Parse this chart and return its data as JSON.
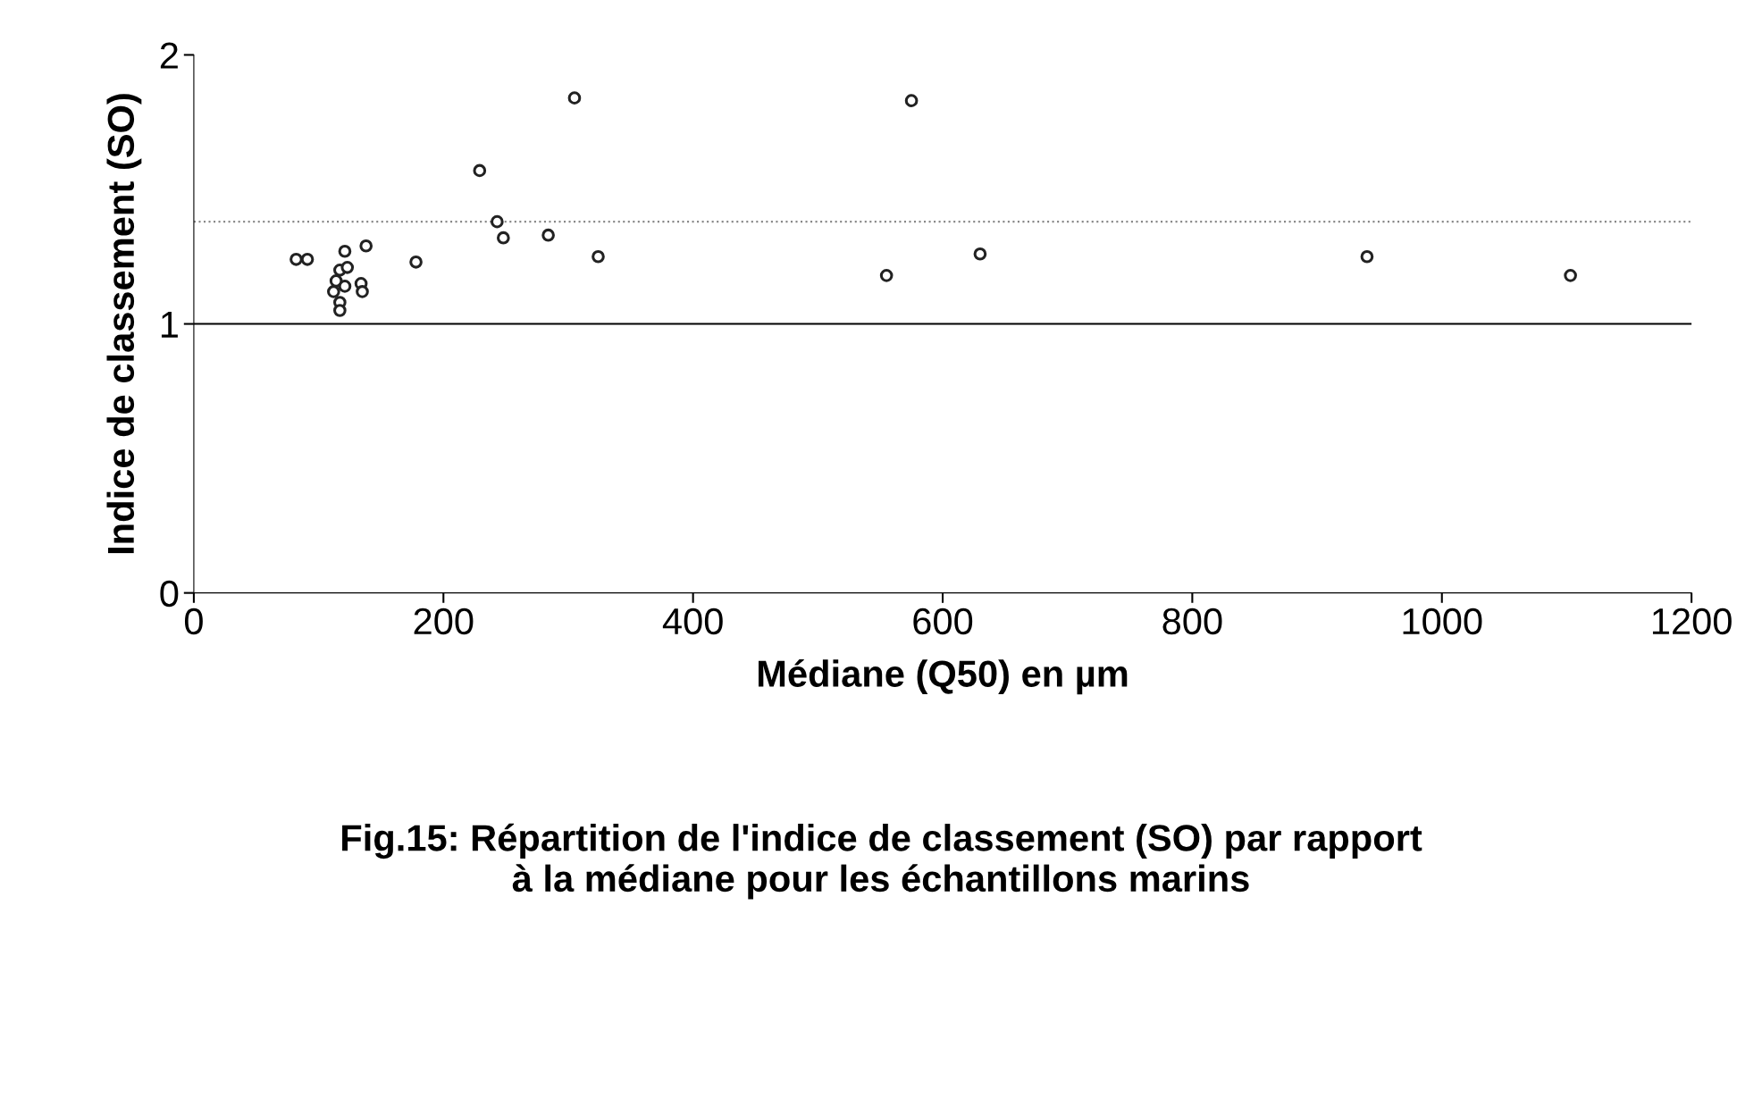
{
  "chart_data": {
    "type": "scatter",
    "xlabel": "Médiane (Q50) en µm",
    "ylabel": "Indice de classement (SO)",
    "annotations": [
      "Fig.15: Répartition de l'indice de classement (SO) par rapport\nà la médiane pour les échantillons marins"
    ],
    "x": [
      82,
      91,
      121,
      138,
      178,
      229,
      243,
      248,
      284,
      305,
      324,
      555,
      630,
      940,
      1103,
      575,
      117,
      114,
      121,
      134,
      135,
      112,
      117,
      117,
      123
    ],
    "series": [
      {
        "color": "#222222",
        "values": [
          1.24,
          1.24,
          1.27,
          1.29,
          1.23,
          1.57,
          1.38,
          1.32,
          1.33,
          1.84,
          1.25,
          1.18,
          1.26,
          1.25,
          1.18,
          1.83,
          1.2,
          1.16,
          1.14,
          1.15,
          1.12,
          1.12,
          1.08,
          1.05,
          1.21
        ]
      }
    ],
    "xlim": [
      0,
      1200
    ],
    "xticks": [
      0,
      200,
      400,
      600,
      800,
      1000,
      1200
    ],
    "ylim": [
      0,
      2
    ],
    "yticks": [
      0,
      1,
      2
    ],
    "ref_lines": [
      {
        "axis": "y",
        "value": 1,
        "color": "#000000",
        "line_style": "solid"
      },
      {
        "axis": "y",
        "value": 1.38,
        "color": "#888888",
        "line_style": "dotted"
      }
    ],
    "marker": "circle",
    "grid": false,
    "legend": false
  }
}
